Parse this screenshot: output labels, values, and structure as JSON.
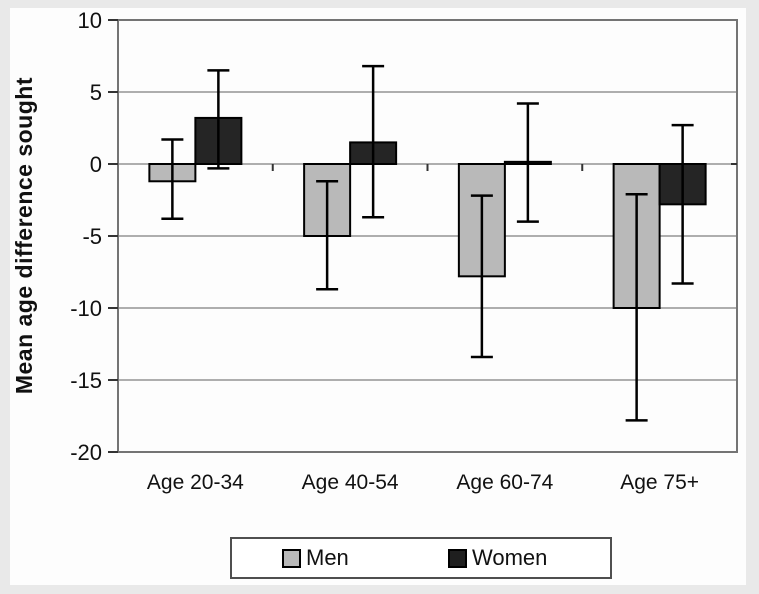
{
  "chart_data": {
    "type": "bar",
    "title": "",
    "ylabel": "Mean age difference sought",
    "xlabel": "",
    "categories": [
      "Age 20-34",
      "Age 40-54",
      "Age 60-74",
      "Age 75+"
    ],
    "series": [
      {
        "name": "Men",
        "color": "#b9b9b9",
        "values": [
          -1.2,
          -5.0,
          -7.8,
          -10.0
        ],
        "error_low": [
          -3.8,
          -8.7,
          -13.4,
          -17.8
        ],
        "error_high": [
          1.7,
          -1.2,
          -2.2,
          -2.1
        ]
      },
      {
        "name": "Women",
        "color": "#252525",
        "values": [
          3.2,
          1.5,
          0.15,
          -2.8
        ],
        "error_low": [
          -0.3,
          -3.7,
          -4.0,
          -8.3
        ],
        "error_high": [
          6.5,
          6.8,
          4.2,
          2.7
        ]
      }
    ],
    "ylim": [
      -20,
      10
    ],
    "ytick_step": 5,
    "ytick_labels": [
      "10",
      "5",
      "0",
      "-5",
      "-10",
      "-15",
      "-20"
    ],
    "grid": true,
    "error_bars": true,
    "legend_position": "bottom"
  },
  "colors": {
    "page_frame": "#e9e9e9",
    "figure_bg": "#fdfdfd",
    "gridline": "#5f5f5f",
    "axis_border": "#747474",
    "text": "#111111",
    "bar_outline": "#000000"
  },
  "legend": {
    "men_label": "Men",
    "women_label": "Women"
  }
}
